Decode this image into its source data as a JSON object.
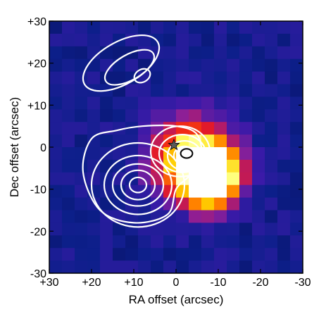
{
  "chart_data": {
    "type": "heatmap",
    "xlabel": "RA offset (arcsec)",
    "ylabel": "Dec offset (arcsec)",
    "xlim": [
      30,
      -30
    ],
    "ylim": [
      -30,
      30
    ],
    "x_axis_reversed": true,
    "xticks": [
      30,
      20,
      10,
      0,
      -10,
      -20,
      -30
    ],
    "xtick_labels": [
      "+30",
      "+20",
      "+10",
      "0",
      "-10",
      "-20",
      "-30"
    ],
    "yticks": [
      30,
      20,
      10,
      0,
      -10,
      -20,
      -30
    ],
    "ytick_labels": [
      "+30",
      "+20",
      "+10",
      "0",
      "-10",
      "-20",
      "-30"
    ],
    "grid": false,
    "colormap": [
      "#08084d",
      "#0c1f8a",
      "#3a1aa8",
      "#8a1f99",
      "#c21a55",
      "#ee1a1a",
      "#ff7a00",
      "#ffcc00",
      "#ffff66",
      "#ffffff"
    ],
    "background_color": "#0c1f8a",
    "pixel_size_arcsec": 3,
    "image_blobs": [
      {
        "ra": -4,
        "dec": -3,
        "sigma_ra": 6,
        "sigma_dec": 6,
        "peak": 1.0
      },
      {
        "ra": -10,
        "dec": -6,
        "sigma_ra": 4,
        "sigma_dec": 4,
        "peak": 0.7
      },
      {
        "ra": -7,
        "dec": -11,
        "sigma_ra": 4,
        "sigma_dec": 3,
        "peak": 0.55
      }
    ],
    "contours": {
      "color": "#ffffff",
      "groups": [
        {
          "name": "north",
          "rings": [
            {
              "ra": 13,
              "dec": 20,
              "rx": 10,
              "ry": 5,
              "rot": -30
            },
            {
              "ra": 11,
              "dec": 19,
              "rx": 6.5,
              "ry": 3,
              "rot": -30
            },
            {
              "ra": 8,
              "dec": 17,
              "rx": 2,
              "ry": 1.5,
              "rot": -30
            }
          ]
        },
        {
          "name": "south-west",
          "rings": [
            {
              "ra": 9,
              "dec": -9,
              "rx": 11,
              "ry": 10,
              "rot": 0
            },
            {
              "ra": 9,
              "dec": -9,
              "rx": 8,
              "ry": 7,
              "rot": 0
            },
            {
              "ra": 9,
              "dec": -9,
              "rx": 6,
              "ry": 5,
              "rot": 0
            },
            {
              "ra": 9,
              "dec": -9,
              "rx": 4,
              "ry": 3.5,
              "rot": 0
            },
            {
              "ra": 9,
              "dec": -9,
              "rx": 2,
              "ry": 1.8,
              "rot": 0
            }
          ]
        },
        {
          "name": "central",
          "rings": [
            {
              "ra": -1,
              "dec": -1,
              "rx": 7,
              "ry": 6,
              "rot": 0
            },
            {
              "ra": -1.5,
              "dec": -1.5,
              "rx": 5.5,
              "ry": 4.5,
              "rot": 0
            },
            {
              "ra": -2,
              "dec": -2,
              "rx": 4,
              "ry": 3.5,
              "rot": 0
            },
            {
              "ra": -2,
              "dec": -2,
              "rx": 2.5,
              "ry": 2.2,
              "rot": 0
            }
          ]
        }
      ],
      "envelope": [
        [
          20,
          2
        ],
        [
          22,
          -6
        ],
        [
          18,
          -15
        ],
        [
          10,
          -18
        ],
        [
          2,
          -16
        ],
        [
          0,
          -10
        ],
        [
          -3,
          -7
        ],
        [
          -6,
          -3
        ],
        [
          -5,
          3
        ],
        [
          0,
          5
        ],
        [
          8,
          5
        ],
        [
          14,
          4
        ]
      ],
      "inner_black_contour": {
        "ra": -2.5,
        "dec": -1.5,
        "rx": 1.4,
        "ry": 1.1,
        "color": "#000000"
      }
    },
    "markers": [
      {
        "type": "star",
        "ra": 0.5,
        "dec": 0.5,
        "color": "#5a5a5a"
      }
    ]
  }
}
